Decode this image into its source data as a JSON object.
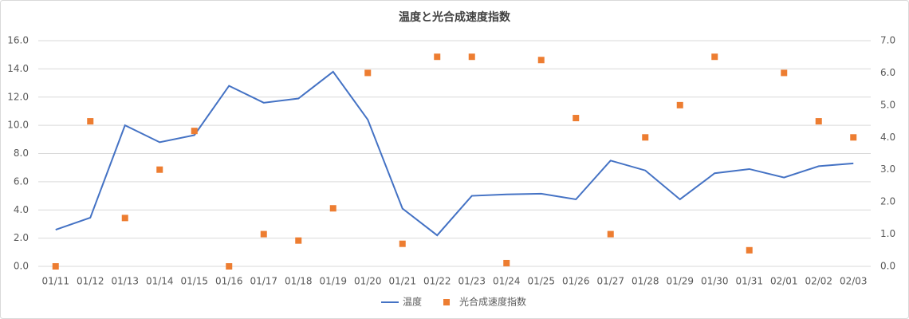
{
  "chart_data": {
    "type": "line-scatter",
    "title": "温度と光合成速度指数",
    "categories": [
      "01/11",
      "01/12",
      "01/13",
      "01/14",
      "01/15",
      "01/16",
      "01/17",
      "01/18",
      "01/19",
      "01/20",
      "01/21",
      "01/22",
      "01/23",
      "01/24",
      "01/25",
      "01/26",
      "01/27",
      "01/28",
      "01/29",
      "01/30",
      "01/31",
      "02/01",
      "02/02",
      "02/03"
    ],
    "series": [
      {
        "name": "温度",
        "color": "#4472c4",
        "kind": "line",
        "values": [
          2.6,
          3.45,
          10.0,
          8.8,
          9.3,
          12.8,
          11.6,
          11.9,
          13.8,
          10.4,
          4.1,
          2.2,
          5.0,
          5.1,
          5.15,
          4.75,
          7.5,
          6.8,
          4.75,
          6.6,
          6.9,
          6.3,
          7.1,
          7.3
        ]
      },
      {
        "name": "光合成速度指数",
        "color": "#ed7d31",
        "kind": "scatter",
        "axis": "y2",
        "values": [
          0,
          4.5,
          1.5,
          3.0,
          4.2,
          0,
          1.0,
          0.8,
          1.8,
          6.0,
          0.7,
          6.5,
          6.5,
          0.1,
          6.4,
          4.6,
          1.0,
          4.0,
          5.0,
          6.5,
          0.5,
          6.0,
          4.5,
          4.0
        ]
      }
    ],
    "ylim": [
      0,
      16
    ],
    "yticks": [
      {
        "value": 0,
        "label": "0.0"
      },
      {
        "value": 2,
        "label": "2.0"
      },
      {
        "value": 4,
        "label": "4.0"
      },
      {
        "value": 6,
        "label": "6.0"
      },
      {
        "value": 8,
        "label": "8.0"
      },
      {
        "value": 10,
        "label": "10.0"
      },
      {
        "value": 12,
        "label": "12.0"
      },
      {
        "value": 14,
        "label": "14.0"
      },
      {
        "value": 16,
        "label": "16.0"
      }
    ],
    "y2lim": [
      0,
      7
    ],
    "y2ticks": [
      {
        "value": 0,
        "label": "0.0"
      },
      {
        "value": 1,
        "label": "1.0"
      },
      {
        "value": 2,
        "label": "2.0"
      },
      {
        "value": 3,
        "label": "3.0"
      },
      {
        "value": 4,
        "label": "4.0"
      },
      {
        "value": 5,
        "label": "5.0"
      },
      {
        "value": 6,
        "label": "6.0"
      },
      {
        "value": 7,
        "label": "7.0"
      }
    ],
    "grid": true,
    "legend": "bottom"
  }
}
